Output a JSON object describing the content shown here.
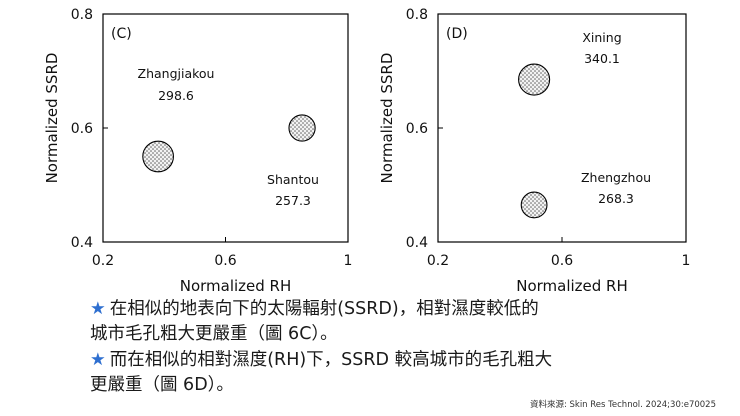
{
  "chart_data": [
    {
      "type": "scatter",
      "panel_label": "(C)",
      "xlabel": "Normalized RH",
      "ylabel": "Normalized SSRD",
      "xlim": [
        0.2,
        1.0
      ],
      "ylim": [
        0.4,
        0.8
      ],
      "x_ticks": [
        "0.2",
        "0.6",
        "1"
      ],
      "y_ticks": [
        "0.4",
        "0.6",
        "0.8"
      ],
      "points": [
        {
          "city": "Zhangjiakou",
          "value": "298.6",
          "x": 0.38,
          "y": 0.55,
          "r": 0.082
        },
        {
          "city": "Shantou",
          "value": "257.3",
          "x": 0.85,
          "y": 0.6,
          "r": 0.07
        }
      ]
    },
    {
      "type": "scatter",
      "panel_label": "(D)",
      "xlabel": "Normalized RH",
      "ylabel": "Normalized SSRD",
      "xlim": [
        0.2,
        1.0
      ],
      "ylim": [
        0.4,
        0.8
      ],
      "x_ticks": [
        "0.2",
        "0.6",
        "1"
      ],
      "y_ticks": [
        "0.4",
        "0.6",
        "0.8"
      ],
      "points": [
        {
          "city": "Xining",
          "value": "340.1",
          "x": 0.51,
          "y": 0.685,
          "r": 0.082
        },
        {
          "city": "Zhengzhou",
          "value": "268.3",
          "x": 0.51,
          "y": 0.465,
          "r": 0.068
        }
      ]
    }
  ],
  "notes": {
    "star": "★",
    "note1_line1": "在相似的地表向下的太陽輻射(SSRD)，相對濕度較低的",
    "note1_line2": "城市毛孔粗大更嚴重（圖 6C）。",
    "note2_line1": "而在相似的相對濕度(RH)下，SSRD 較高城市的毛孔粗大",
    "note2_line2": "更嚴重（圖 6D）。"
  },
  "source": "資料來源: Skin Res Technol. 2024;30:e70025",
  "colors": {
    "accent": "#2e6fd0",
    "bubble_fill": "#f2f2f2",
    "bubble_dot": "#555555",
    "axis": "#000000"
  }
}
